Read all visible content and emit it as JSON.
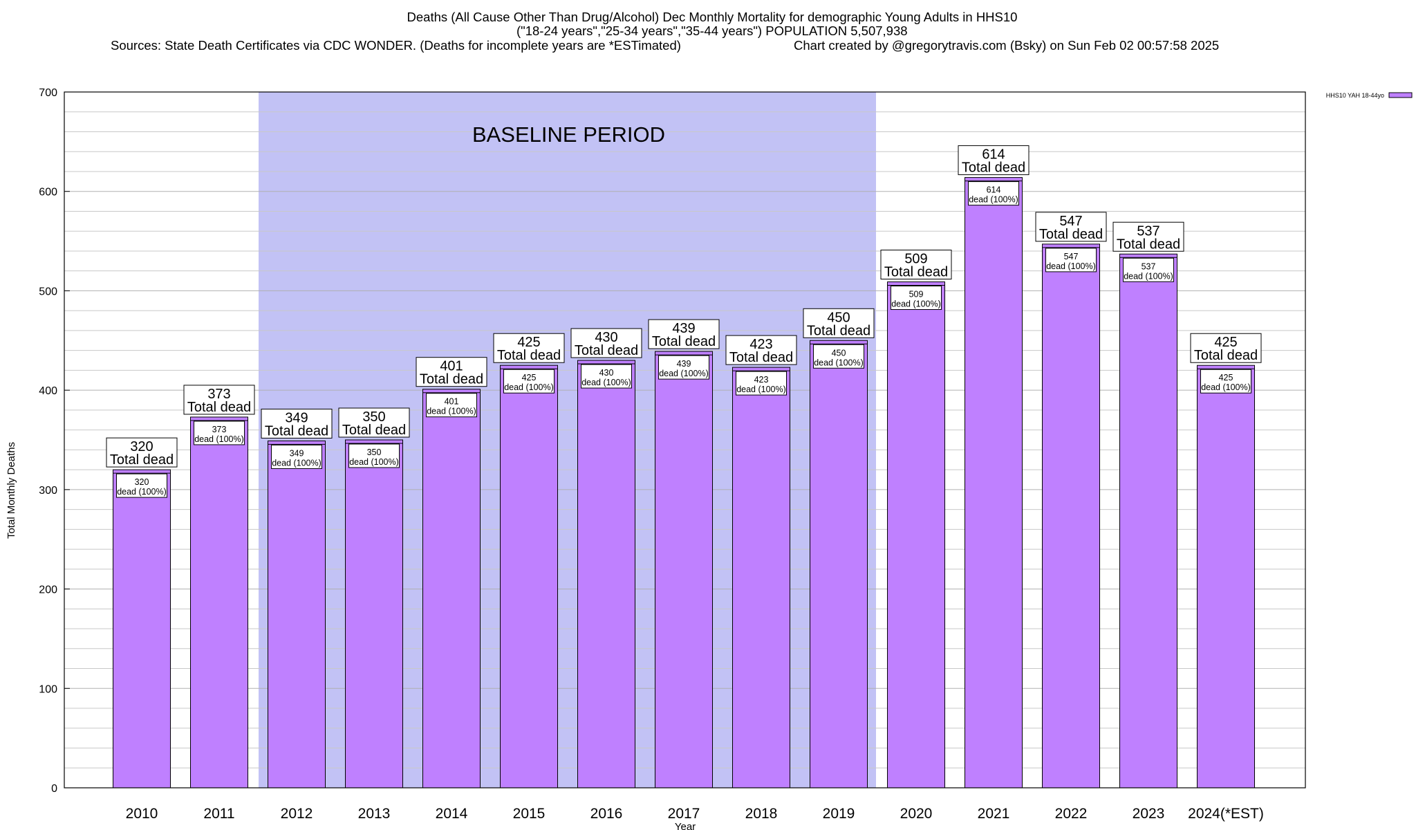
{
  "header": {
    "title_line1": "Deaths (All Cause Other Than Drug/Alcohol) Dec Monthly Mortality for demographic Young Adults in HHS10",
    "title_line2": "(\"18-24 years\",\"25-34 years\",\"35-44 years\") POPULATION 5,507,938",
    "sources": "Sources: State Death Certificates via CDC WONDER. (Deaths for incomplete years are *ESTimated)",
    "credit": "Chart created by @gregorytravis.com (Bsky) on Sun Feb 02 00:57:58 2025"
  },
  "colors": {
    "bar_fill": "#bf80ff",
    "baseline_band": "#c2c2f5",
    "grid": "#c8c8c8",
    "axis": "#000000"
  },
  "chart_data": {
    "type": "bar",
    "xlabel": "Year",
    "ylabel": "Total Monthly Deaths",
    "ylim": [
      0,
      700
    ],
    "y_ticks": [
      0,
      100,
      200,
      300,
      400,
      500,
      600,
      700
    ],
    "categories": [
      "2010",
      "2011",
      "2012",
      "2013",
      "2014",
      "2015",
      "2016",
      "2017",
      "2018",
      "2019",
      "2020",
      "2021",
      "2022",
      "2023",
      "2024(*EST)"
    ],
    "series": [
      {
        "name": "HHS10 YAH 18-44yo",
        "values": [
          320,
          373,
          349,
          350,
          401,
          425,
          430,
          439,
          423,
          450,
          509,
          614,
          547,
          537,
          425
        ]
      }
    ],
    "top_label_suffix": "Total dead",
    "inner_label_suffix": "dead (100%)",
    "baseline_band": {
      "label": "BASELINE PERIOD",
      "from_category": "2012",
      "to_category": "2019"
    },
    "legend_position": "top-right",
    "grid": true
  }
}
